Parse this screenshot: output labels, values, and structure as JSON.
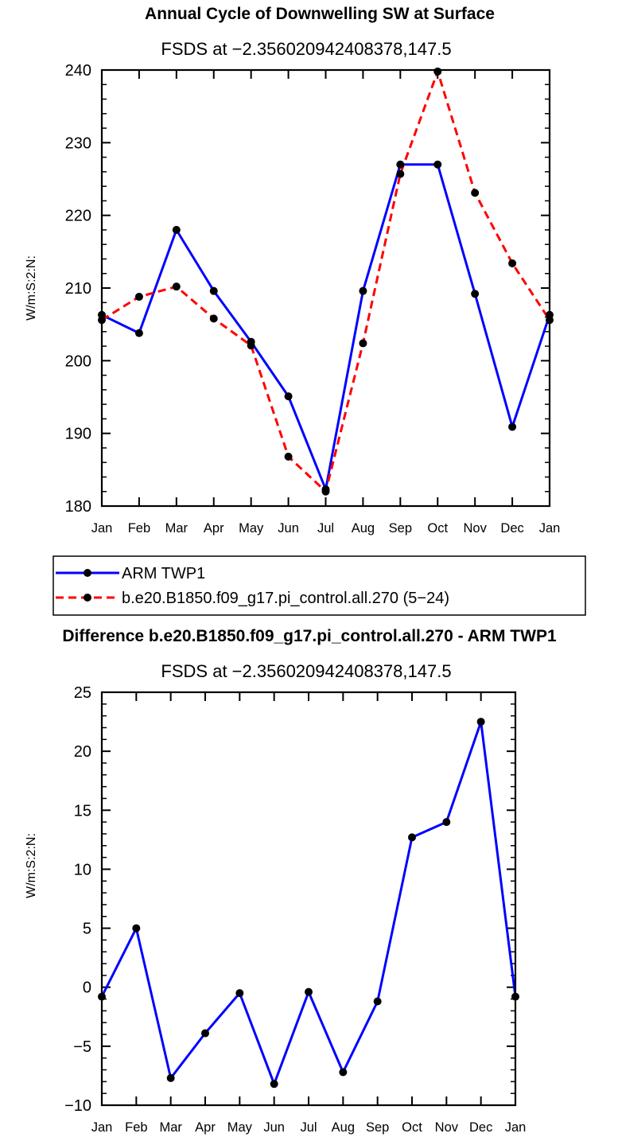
{
  "chart_data": [
    {
      "type": "line",
      "title": "Annual Cycle of Downwelling SW at Surface",
      "subtitle": "FSDS at −2.356020942408378,147.5",
      "ylabel": "W/m:S:2:N:",
      "xlabel": "",
      "categories": [
        "Jan",
        "Feb",
        "Mar",
        "Apr",
        "May",
        "Jun",
        "Jul",
        "Aug",
        "Sep",
        "Oct",
        "Nov",
        "Dec",
        "Jan"
      ],
      "ylim": [
        180,
        240
      ],
      "yticks": [
        "180",
        "190",
        "200",
        "210",
        "220",
        "230",
        "240"
      ],
      "series": [
        {
          "name": "ARM TWP1",
          "color": "#0000ff",
          "dash": "solid",
          "values": [
            206.3,
            203.8,
            218.0,
            209.6,
            202.6,
            195.1,
            182.3,
            209.6,
            227.0,
            227.0,
            209.2,
            190.9,
            206.3
          ]
        },
        {
          "name": "b.e20.B1850.f09_g17.pi_control.all.270 (5−24)",
          "color": "#ff0000",
          "dash": "dashed",
          "values": [
            205.6,
            208.8,
            210.2,
            205.8,
            202.1,
            186.8,
            182.0,
            202.4,
            225.7,
            239.8,
            223.1,
            213.4,
            205.6
          ]
        }
      ],
      "legend": [
        "ARM TWP1",
        "b.e20.B1850.f09_g17.pi_control.all.270 (5−24)"
      ]
    },
    {
      "type": "line",
      "title": "Difference b.e20.B1850.f09_g17.pi_control.all.270 - ARM TWP1",
      "subtitle": "FSDS at −2.356020942408378,147.5",
      "ylabel": "W/m:S:2:N:",
      "xlabel": "",
      "categories": [
        "Jan",
        "Feb",
        "Mar",
        "Apr",
        "May",
        "Jun",
        "Jul",
        "Aug",
        "Sep",
        "Oct",
        "Nov",
        "Dec",
        "Jan"
      ],
      "ylim": [
        -10,
        25
      ],
      "yticks": [
        "−10",
        "−5",
        "0",
        "5",
        "10",
        "15",
        "20",
        "25"
      ],
      "series": [
        {
          "name": "difference",
          "color": "#0000ff",
          "dash": "solid",
          "values": [
            -0.8,
            5.0,
            -7.7,
            -3.9,
            -0.5,
            -8.2,
            -0.4,
            -7.2,
            -1.2,
            12.7,
            14.0,
            22.5,
            -0.8
          ]
        }
      ]
    }
  ]
}
